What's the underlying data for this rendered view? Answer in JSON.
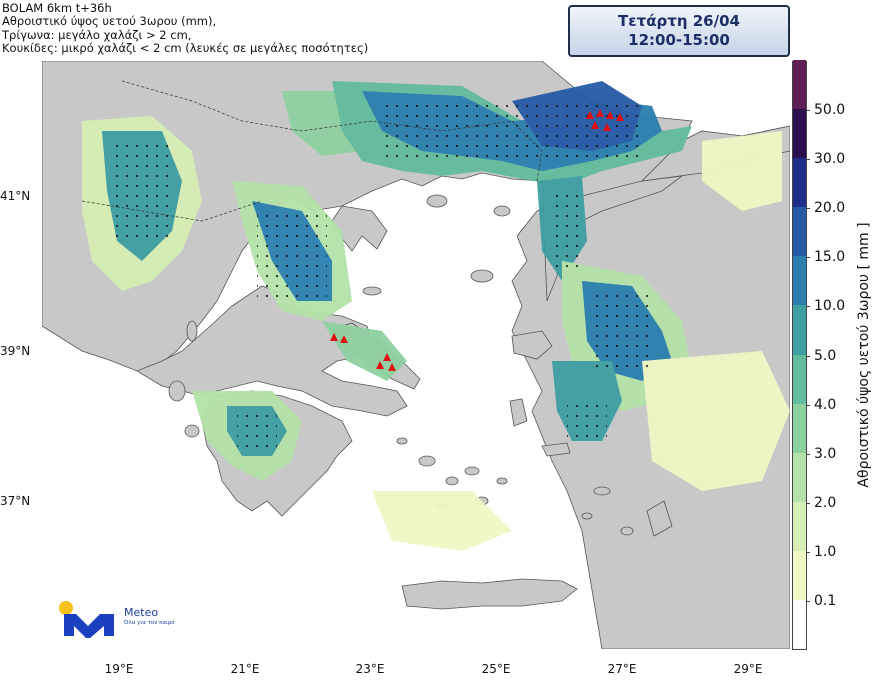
{
  "header": {
    "line1": "BOLAM 6km t+36h",
    "line2": "Αθροιστικό ύψος υετού 3ωρου (mm),",
    "line3": "Τρίγωνα: μεγάλο χαλάζι > 2 cm,",
    "line4": "Κουκίδες: μικρό χαλάζι < 2 cm (λευκές σε μεγάλες ποσότητες)"
  },
  "datebox": {
    "day": "Τετάρτη 26/04",
    "hours": "12:00-15:00"
  },
  "x_axis_labels": [
    "19°E",
    "21°E",
    "23°E",
    "25°E",
    "27°E",
    "29°E"
  ],
  "y_axis_labels": [
    "41°N",
    "39°N",
    "37°N"
  ],
  "colorbar": {
    "title": "Αθροιστικό ύψος υετού 3ωρου [ mm ]",
    "levels": [
      "0.1",
      "1.0",
      "2.0",
      "3.0",
      "4.0",
      "5.0",
      "10.0",
      "15.0",
      "20.0",
      "30.0",
      "50.0"
    ],
    "colors": [
      "#ffffff",
      "#f0f7c4",
      "#d6efb4",
      "#b4e2a8",
      "#8ed1a0",
      "#62bc9e",
      "#3e9ea2",
      "#2b7fae",
      "#245aa6",
      "#1f2e8a",
      "#2c0f4e",
      "#5e2054"
    ]
  },
  "logo": {
    "name": "Meteo",
    "tagline": "Όλα για τον καιρό"
  },
  "colors": {
    "land": "#c8c8c8",
    "sea": "#ffffff",
    "hail_triangle": "#e01010",
    "hail_dot": "#111111"
  }
}
